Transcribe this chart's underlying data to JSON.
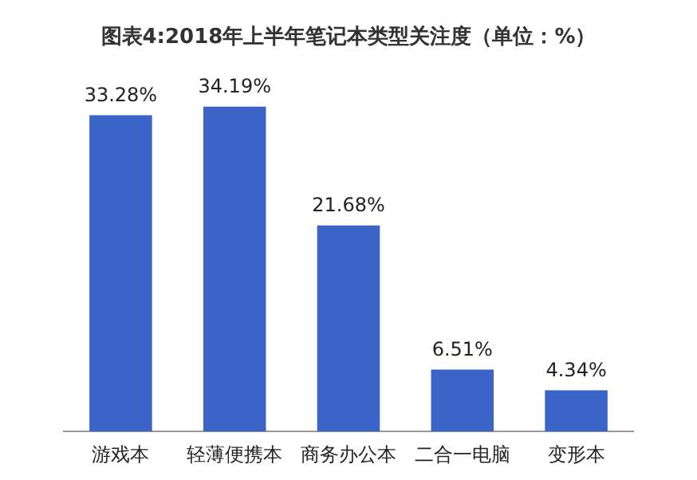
{
  "chart_data": {
    "type": "bar",
    "title": "图表4:2018年上半年笔记本类型关注度（单位：%）",
    "categories": [
      "游戏本",
      "轻薄便携本",
      "商务办公本",
      "二合一电脑",
      "变形本"
    ],
    "values": [
      33.28,
      34.19,
      21.68,
      6.51,
      4.34
    ],
    "value_labels": [
      "33.28%",
      "34.19%",
      "21.68%",
      "6.51%",
      "4.34%"
    ],
    "color": "#3a64c8",
    "grid": false,
    "legend": false,
    "tick_labels": "x"
  }
}
